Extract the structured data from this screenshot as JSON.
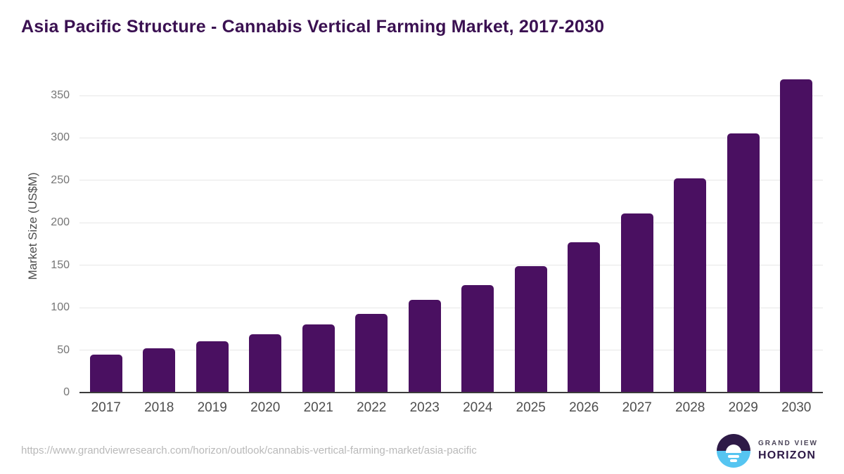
{
  "title": "Asia Pacific Structure - Cannabis Vertical Farming Market, 2017-2030",
  "chart_data": {
    "type": "bar",
    "title": "Asia Pacific Structure - Cannabis Vertical Farming Market, 2017-2030",
    "categories": [
      "2017",
      "2018",
      "2019",
      "2020",
      "2021",
      "2022",
      "2023",
      "2024",
      "2025",
      "2026",
      "2027",
      "2028",
      "2029",
      "2030"
    ],
    "values": [
      45,
      52,
      60,
      69,
      80,
      93,
      109,
      127,
      149,
      177,
      211,
      252,
      305,
      369
    ],
    "xlabel": "",
    "ylabel": "Market Size (US$M)",
    "ylim": [
      0,
      375
    ],
    "yticks": [
      0,
      50,
      100,
      150,
      200,
      250,
      300,
      350
    ],
    "grid": "horizontal",
    "legend": "none"
  },
  "colors": {
    "bar": "#4a1061",
    "title": "#3a1051",
    "gridline": "#e7e7e7",
    "axis_line": "#3b3b3b",
    "logo_dark": "#2e1a47",
    "logo_blue": "#56c5f1"
  },
  "footer": {
    "source_url": "https://www.grandviewresearch.com/horizon/outlook/cannabis-vertical-farming-market/asia-pacific",
    "logo": {
      "line1": "GRAND VIEW",
      "line2": "HORIZON"
    }
  }
}
